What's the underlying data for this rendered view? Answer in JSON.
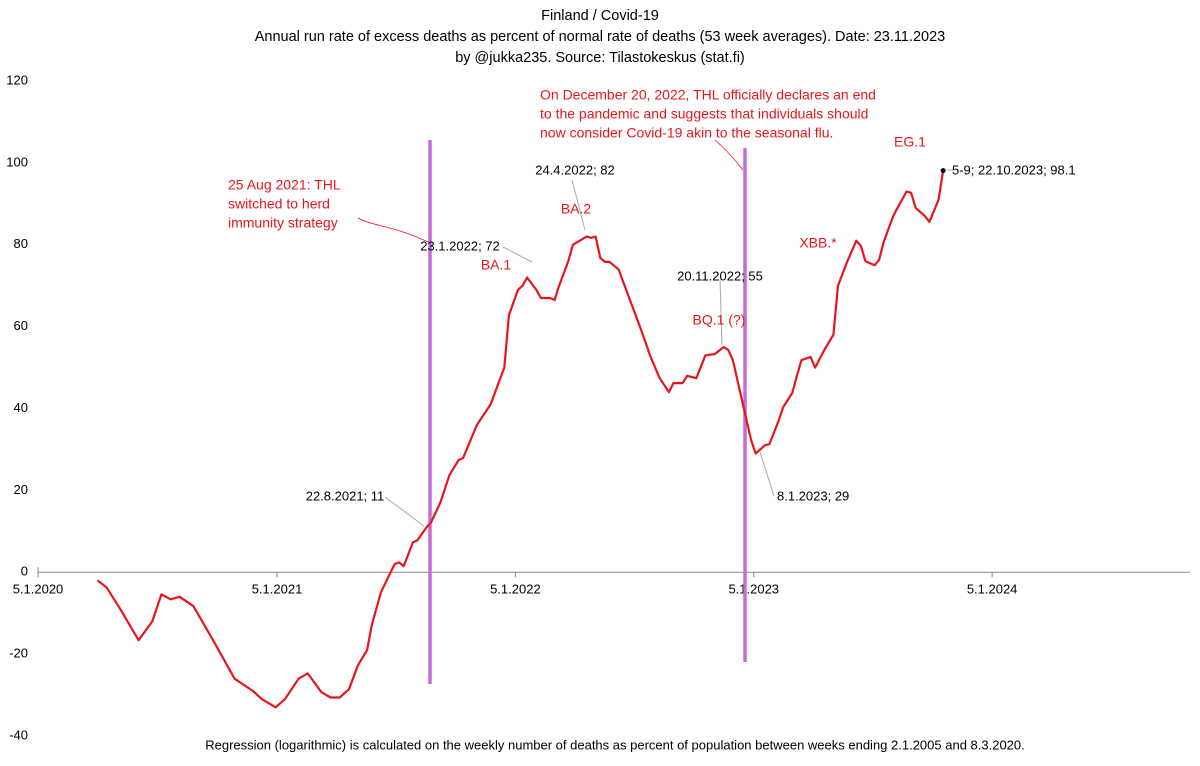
{
  "chart_data": {
    "type": "line",
    "title": "Finland / Covid-19",
    "subtitle": "Annual run rate of excess deaths as percent of normal rate of deaths (53 week averages). Date: 23.11.2023",
    "byline": "by @jukka235. Source: Tilastokeskus (stat.fi)",
    "footnote": "Regression (logarithmic) is calculated on the weekly number of deaths as percent of population between weeks ending 2.1.2005 and 8.3.2020.",
    "xlim": [
      "2020-01-05",
      "2024-11-03"
    ],
    "xticks": [
      {
        "value": "2020-01-05",
        "label": "5.1.2020"
      },
      {
        "value": "2021-01-05",
        "label": "5.1.2021"
      },
      {
        "value": "2022-01-05",
        "label": "5.1.2022"
      },
      {
        "value": "2023-01-05",
        "label": "5.1.2023"
      },
      {
        "value": "2024-01-05",
        "label": "5.1.2024"
      }
    ],
    "ylim": [
      -40,
      120
    ],
    "yticks": [
      -40,
      -20,
      0,
      20,
      40,
      60,
      80,
      100,
      120
    ],
    "series": [
      {
        "color": "#e8161c",
        "x": [
          "2020-04-05",
          "2020-04-19",
          "2020-05-10",
          "2020-06-07",
          "2020-06-28",
          "2020-07-12",
          "2020-07-26",
          "2020-08-09",
          "2020-08-30",
          "2020-09-27",
          "2020-11-01",
          "2020-11-29",
          "2020-12-13",
          "2021-01-03",
          "2021-01-17",
          "2021-02-07",
          "2021-02-21",
          "2021-03-14",
          "2021-03-28",
          "2021-04-11",
          "2021-04-25",
          "2021-05-09",
          "2021-05-23",
          "2021-05-30",
          "2021-06-13",
          "2021-07-04",
          "2021-07-11",
          "2021-07-18",
          "2021-08-01",
          "2021-08-08",
          "2021-08-22",
          "2021-08-29",
          "2021-09-12",
          "2021-09-26",
          "2021-10-10",
          "2021-10-17",
          "2021-11-07",
          "2021-11-28",
          "2021-12-19",
          "2021-12-26",
          "2022-01-09",
          "2022-01-16",
          "2022-01-23",
          "2022-02-06",
          "2022-02-13",
          "2022-02-27",
          "2022-03-06",
          "2022-03-13",
          "2022-03-27",
          "2022-04-03",
          "2022-04-24",
          "2022-05-01",
          "2022-05-08",
          "2022-05-15",
          "2022-05-22",
          "2022-05-29",
          "2022-06-12",
          "2022-06-19",
          "2022-07-03",
          "2022-07-17",
          "2022-07-31",
          "2022-08-14",
          "2022-08-28",
          "2022-09-04",
          "2022-09-18",
          "2022-09-25",
          "2022-10-09",
          "2022-10-23",
          "2022-11-06",
          "2022-11-20",
          "2022-11-27",
          "2022-12-04",
          "2022-12-18",
          "2023-01-01",
          "2023-01-08",
          "2023-01-22",
          "2023-01-29",
          "2023-02-12",
          "2023-02-19",
          "2023-03-05",
          "2023-03-12",
          "2023-03-19",
          "2023-04-02",
          "2023-04-09",
          "2023-04-23",
          "2023-05-07",
          "2023-05-14",
          "2023-05-28",
          "2023-06-11",
          "2023-06-18",
          "2023-06-25",
          "2023-07-09",
          "2023-07-16",
          "2023-07-23",
          "2023-08-06",
          "2023-08-13",
          "2023-08-27",
          "2023-09-03",
          "2023-09-10",
          "2023-09-24",
          "2023-10-01",
          "2023-10-15",
          "2023-10-22"
        ],
        "values": [
          -2,
          -3.7,
          -9,
          -16.6,
          -12,
          -5.4,
          -6.6,
          -6,
          -8.3,
          -16,
          -26,
          -29,
          -31,
          -33,
          -31,
          -26,
          -24.7,
          -29.3,
          -30.6,
          -30.6,
          -28.6,
          -22.7,
          -19,
          -13,
          -4.9,
          2,
          2.4,
          1.5,
          7.3,
          7.8,
          11,
          12.2,
          17,
          23.7,
          27.4,
          27.9,
          36,
          41,
          50,
          62.8,
          69,
          70,
          72,
          69,
          67,
          67,
          66.5,
          70,
          76,
          80,
          82,
          81.7,
          82,
          76.8,
          75.8,
          75.8,
          74,
          71,
          65,
          59,
          52.6,
          47.4,
          44,
          46.2,
          46.2,
          48,
          47.4,
          53,
          53.3,
          55,
          54.3,
          51.8,
          42,
          32.3,
          29,
          31,
          31.3,
          37,
          40.3,
          43.8,
          48,
          51.8,
          52.6,
          50,
          54.3,
          58,
          70,
          75.8,
          81,
          79.7,
          76,
          75,
          76.3,
          80.7,
          86.8,
          89,
          93,
          92.7,
          89,
          87,
          85.6,
          91,
          98.1
        ]
      }
    ],
    "point_labels": [
      "22.8.2021; 11",
      "23.1.2022; 72",
      "24.4.2022; 82",
      "20.11.2022; 55",
      "8.1.2023; 29",
      "5-9; 22.10.2023; 98.1"
    ],
    "variant_labels": [
      "BA.1",
      "BA.2",
      "BQ.1 (?)",
      "XBB.*",
      "EG.1"
    ],
    "annotations": [
      [
        "25 Aug 2021: THL",
        "switched to herd",
        "immunity strategy"
      ],
      [
        "On December 20, 2022, THL officially declares an end",
        "to the pandemic and suggests that individuals should",
        "now consider Covid-19 akin to the seasonal flu."
      ]
    ]
  }
}
